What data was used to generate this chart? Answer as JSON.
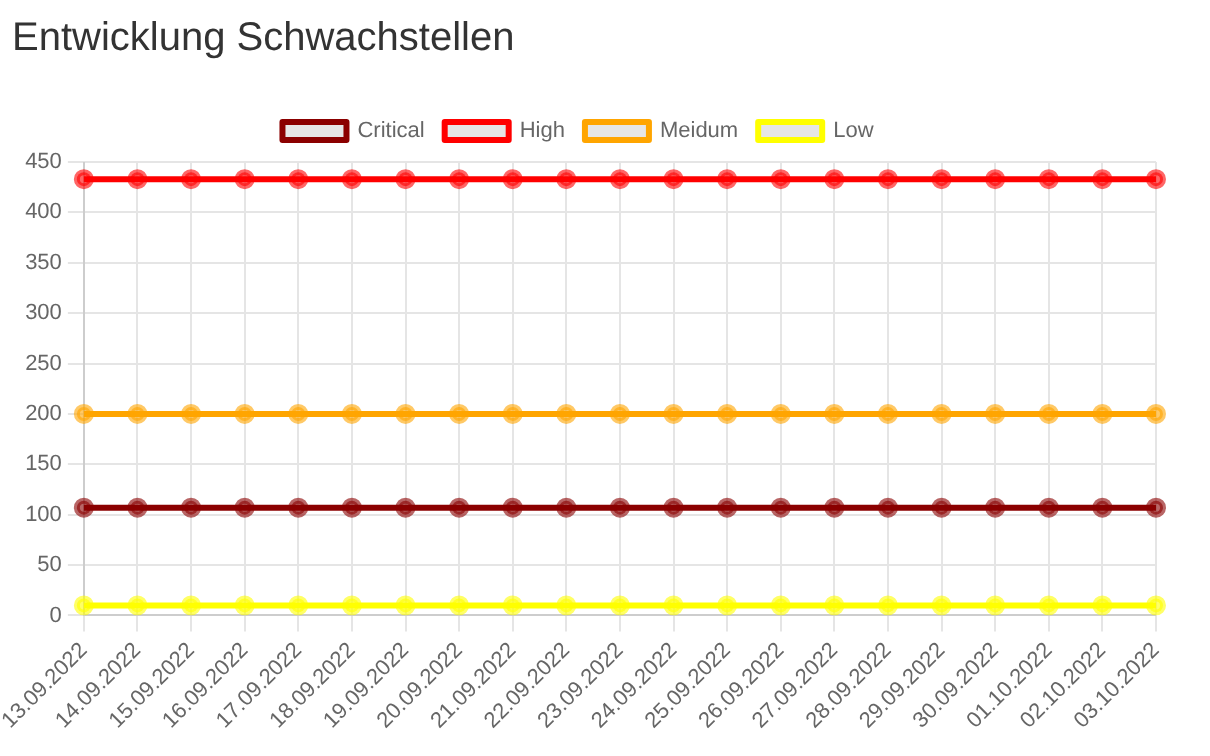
{
  "chart_data": {
    "type": "line",
    "title": "Entwicklung Schwachstellen",
    "categories": [
      "13.09.2022",
      "14.09.2022",
      "15.09.2022",
      "16.09.2022",
      "17.09.2022",
      "18.09.2022",
      "19.09.2022",
      "20.09.2022",
      "21.09.2022",
      "22.09.2022",
      "23.09.2022",
      "24.09.2022",
      "25.09.2022",
      "26.09.2022",
      "27.09.2022",
      "28.09.2022",
      "29.09.2022",
      "30.09.2022",
      "01.10.2022",
      "02.10.2022",
      "03.10.2022"
    ],
    "series": [
      {
        "name": "Critical",
        "color": "#8b0000",
        "values": [
          107,
          107,
          107,
          107,
          107,
          107,
          107,
          107,
          107,
          107,
          107,
          107,
          107,
          107,
          107,
          107,
          107,
          107,
          107,
          107,
          107
        ]
      },
      {
        "name": "High",
        "color": "#ff0000",
        "values": [
          433,
          433,
          433,
          433,
          433,
          433,
          433,
          433,
          433,
          433,
          433,
          433,
          433,
          433,
          433,
          433,
          433,
          433,
          433,
          433,
          433
        ]
      },
      {
        "name": "Meidum",
        "color": "#ffa500",
        "values": [
          200,
          200,
          200,
          200,
          200,
          200,
          200,
          200,
          200,
          200,
          200,
          200,
          200,
          200,
          200,
          200,
          200,
          200,
          200,
          200,
          200
        ]
      },
      {
        "name": "Low",
        "color": "#ffff00",
        "values": [
          10,
          10,
          10,
          10,
          10,
          10,
          10,
          10,
          10,
          10,
          10,
          10,
          10,
          10,
          10,
          10,
          10,
          10,
          10,
          10,
          10
        ]
      }
    ],
    "ylim": [
      0,
      450
    ],
    "yticks": [
      0,
      50,
      100,
      150,
      200,
      250,
      300,
      350,
      400,
      450
    ],
    "grid": true,
    "legend": "top",
    "marker": "circle",
    "line_style": "solid"
  }
}
